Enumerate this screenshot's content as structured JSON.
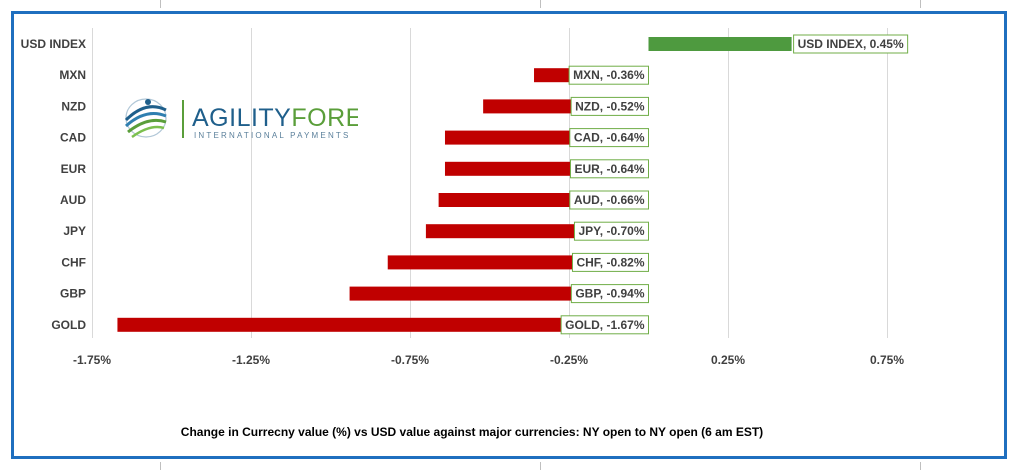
{
  "colors": {
    "bar_negative": "#c00000",
    "bar_positive": "#4e9a3f",
    "label_border": "#70ad47",
    "frame": "#1f6fbf",
    "gridline": "#d9d9d9",
    "logo_blue": "#1f5f8b",
    "logo_green": "#5a9e3a"
  },
  "logo": {
    "word_part1": "AGILITY",
    "word_part2": "FOREX",
    "tagline": "INTERNATIONAL PAYMENTS"
  },
  "chart_data": {
    "type": "bar",
    "orientation": "horizontal",
    "categories": [
      "USD INDEX",
      "MXN",
      "NZD",
      "CAD",
      "EUR",
      "AUD",
      "JPY",
      "CHF",
      "GBP",
      "GOLD"
    ],
    "values": [
      0.45,
      -0.36,
      -0.52,
      -0.64,
      -0.64,
      -0.66,
      -0.7,
      -0.82,
      -0.94,
      -1.67
    ],
    "data_labels": [
      "USD INDEX, 0.45%",
      "MXN, -0.36%",
      "NZD, -0.52%",
      "CAD, -0.64%",
      "EUR, -0.64%",
      "AUD, -0.66%",
      "JPY, -0.70%",
      "CHF, -0.82%",
      "GBP, -0.94%",
      "GOLD, -1.67%"
    ],
    "xlim": [
      -1.75,
      0.75
    ],
    "xticks": [
      -1.75,
      -1.25,
      -0.75,
      -0.25,
      0.25,
      0.75
    ],
    "xtick_labels": [
      "-1.75%",
      "-1.25%",
      "-0.75%",
      "-0.25%",
      "0.25%",
      "0.75%"
    ],
    "grid": true,
    "title": "",
    "caption": "Change in Currecny value (%) vs USD value  against major currencies:  NY open to NY open  (6 am EST)"
  }
}
